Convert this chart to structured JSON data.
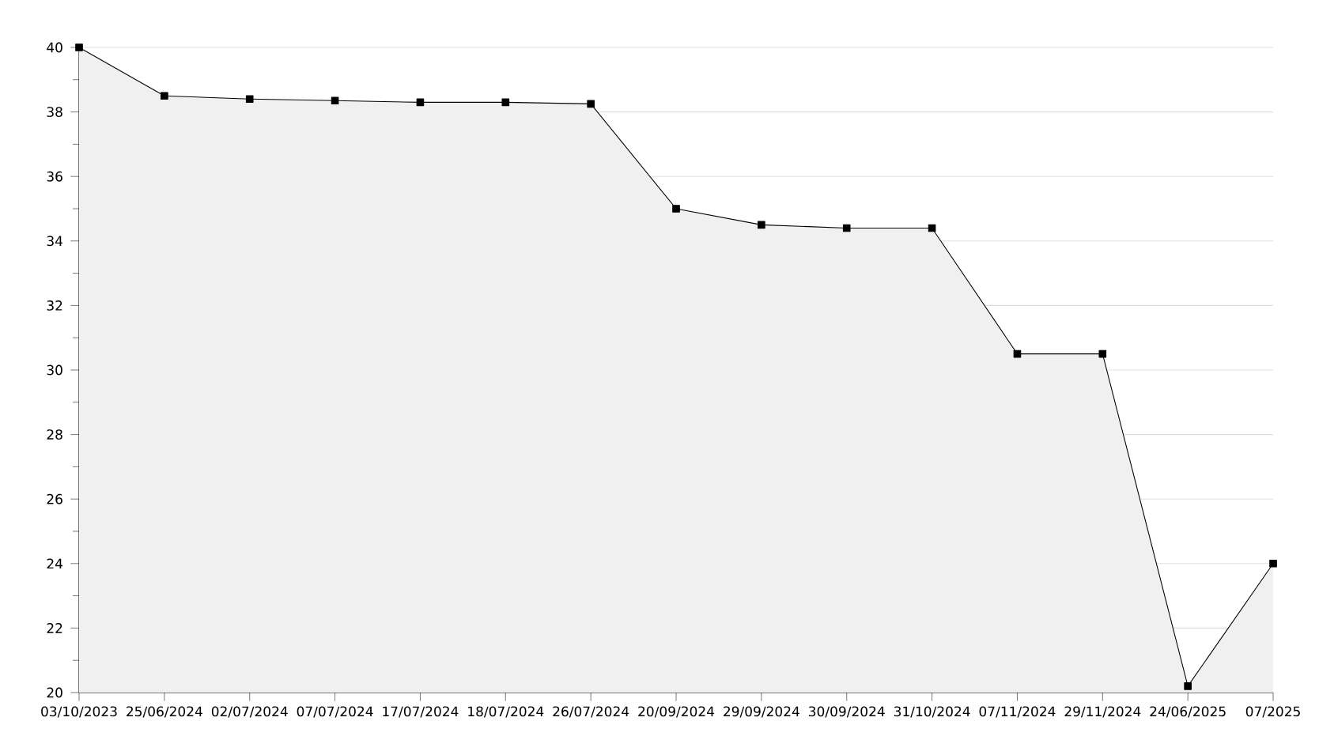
{
  "chart_data": {
    "type": "area",
    "color": "#000000",
    "marker": "square",
    "grid": "y",
    "categories": [
      "03/10/2023",
      "25/06/2024",
      "02/07/2024",
      "07/07/2024",
      "17/07/2024",
      "18/07/2024",
      "26/07/2024",
      "20/09/2024",
      "29/09/2024",
      "30/09/2024",
      "31/10/2024",
      "07/11/2024",
      "29/11/2024",
      "24/06/2025",
      "07/2025"
    ],
    "values": [
      40,
      38.5,
      38.4,
      38.35,
      38.3,
      38.3,
      38.25,
      35,
      34.5,
      34.4,
      34.4,
      30.5,
      30.5,
      20.2,
      24
    ],
    "ylim": [
      20,
      40
    ],
    "yticks": [
      20,
      {
        "value": 21,
        "label": null
      },
      22,
      {
        "value": 23,
        "label": null
      },
      24,
      {
        "value": 25,
        "label": null
      },
      26,
      {
        "value": 27,
        "label": null
      },
      28,
      {
        "value": 29,
        "label": null
      },
      30,
      {
        "value": 31,
        "label": null
      },
      32,
      {
        "value": 33,
        "label": null
      },
      34,
      {
        "value": 35,
        "label": null
      },
      36,
      {
        "value": 37,
        "label": null
      },
      38,
      {
        "value": 39,
        "label": null
      },
      40
    ]
  }
}
